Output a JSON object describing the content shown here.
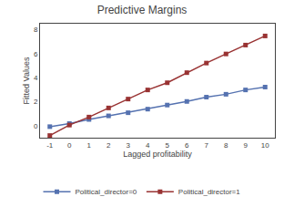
{
  "chart_data": {
    "type": "line",
    "title": "Predictive Margins",
    "x_label": "Lagged profitability",
    "y_label": "Fitted Values",
    "x": [
      -1,
      0,
      1,
      2,
      3,
      4,
      5,
      6,
      7,
      8,
      9,
      10
    ],
    "series": [
      {
        "name": "Political_director=0",
        "color": "#5572b0",
        "marker": "square",
        "values": [
          -0.08,
          0.18,
          0.52,
          0.82,
          1.08,
          1.38,
          1.72,
          2.02,
          2.38,
          2.62,
          2.98,
          3.22
        ]
      },
      {
        "name": "Political_director=1",
        "color": "#993333",
        "marker": "square",
        "values": [
          -0.82,
          0.05,
          0.72,
          1.48,
          2.22,
          2.98,
          3.58,
          4.42,
          5.22,
          5.98,
          6.72,
          7.48
        ]
      }
    ],
    "xlim": [
      -1.5,
      10.5
    ],
    "ylim": [
      -1.0,
      8.5
    ],
    "xticks": [
      -1,
      0,
      1,
      2,
      3,
      4,
      5,
      6,
      7,
      8,
      9,
      10
    ],
    "yticks": [
      0,
      2,
      4,
      6,
      8
    ],
    "grid": false,
    "legend": "bottom"
  }
}
